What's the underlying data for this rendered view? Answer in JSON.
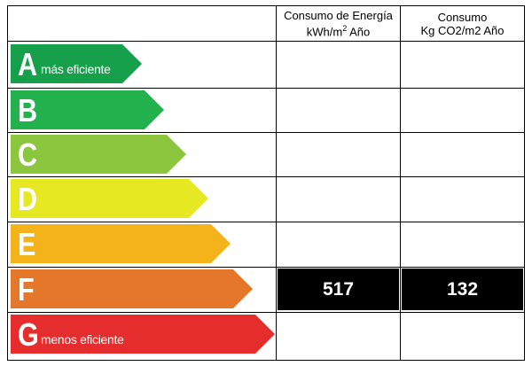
{
  "header": {
    "col1_line1": "Consumo de Energía",
    "col1_line2": "kWh/m",
    "col1_sup": "2",
    "col1_line2_end": " Año",
    "col2_line1": "Consumo",
    "col2_line2": "Kg CO2/m2 Año"
  },
  "ratings": [
    {
      "letter": "A",
      "label": "más eficiente",
      "color": "#16a04c"
    },
    {
      "letter": "B",
      "label": "",
      "color": "#22b14c"
    },
    {
      "letter": "C",
      "label": "",
      "color": "#8cc63f"
    },
    {
      "letter": "D",
      "label": "",
      "color": "#e6e822"
    },
    {
      "letter": "E",
      "label": "",
      "color": "#f5b31b"
    },
    {
      "letter": "F",
      "label": "",
      "color": "#e5772a"
    },
    {
      "letter": "G",
      "label": "menos eficiente",
      "color": "#e52d2d"
    }
  ],
  "selected": {
    "rating": "F",
    "energy": "517",
    "co2": "132"
  }
}
